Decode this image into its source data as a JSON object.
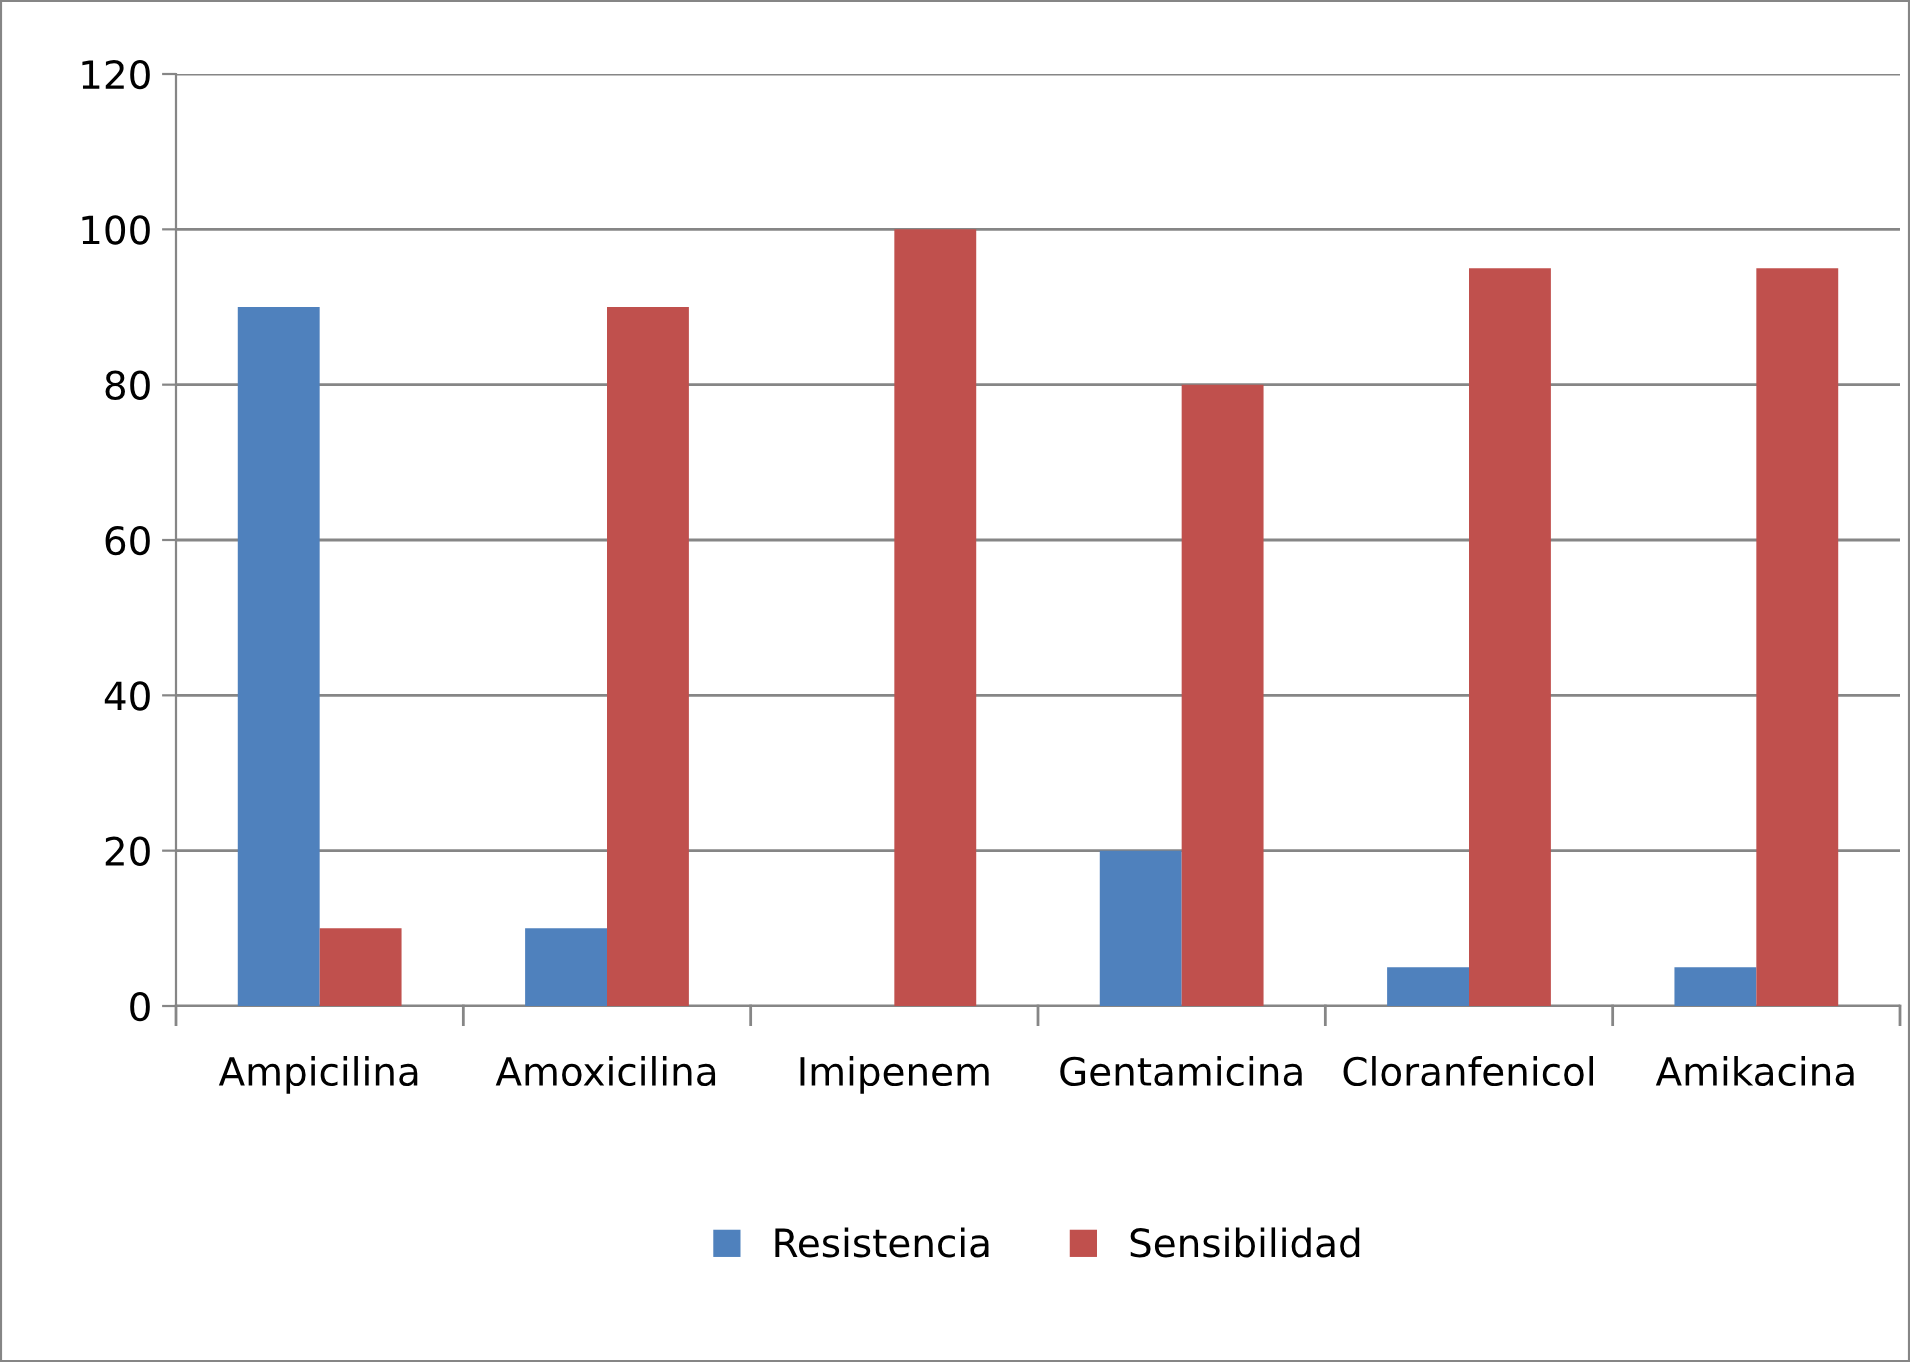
{
  "chart_data": {
    "type": "bar",
    "categories": [
      "Ampicilina",
      "Amoxicilina",
      "Imipenem",
      "Gentamicina",
      "Cloranfenicol",
      "Amikacina"
    ],
    "series": [
      {
        "name": "Resistencia",
        "color": "#4f81bd",
        "values": [
          90,
          10,
          0,
          20,
          5,
          5
        ]
      },
      {
        "name": "Sensibilidad",
        "color": "#c0504d",
        "values": [
          10,
          90,
          100,
          80,
          95,
          95
        ]
      }
    ],
    "ylim": [
      0,
      120
    ],
    "yticks": [
      0,
      20,
      40,
      60,
      80,
      100,
      120
    ],
    "grid": "y",
    "legend": "bottom"
  }
}
